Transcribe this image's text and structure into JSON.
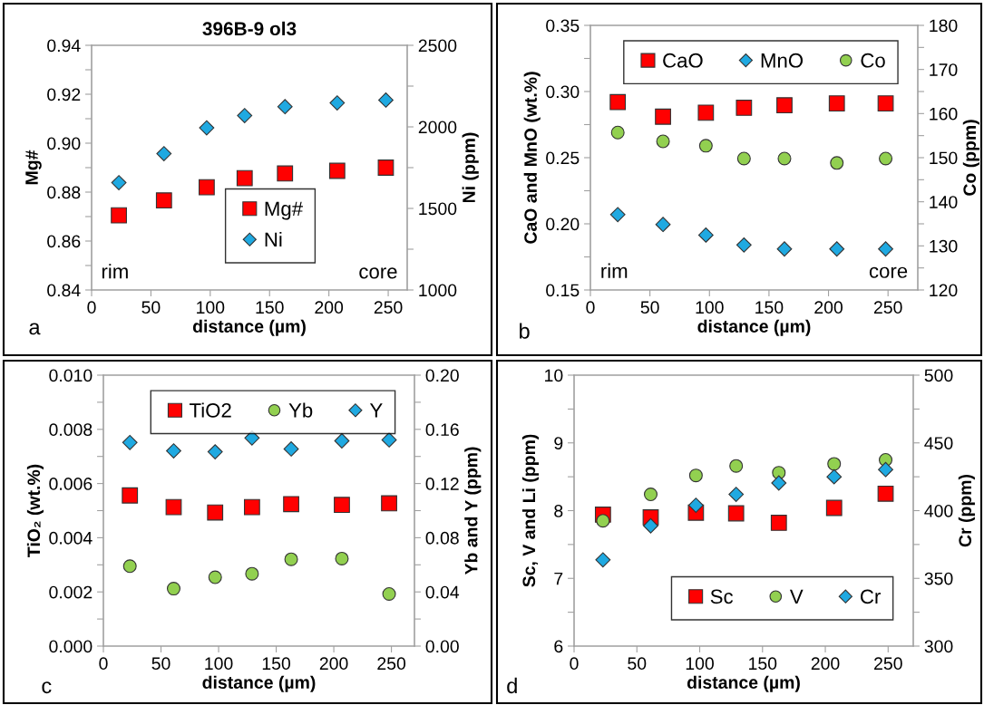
{
  "chart_data": [
    {
      "type": "scatter",
      "title": "396B-9 ol3",
      "xlabel": "distance (µm)",
      "ylabel": "Mg#",
      "y2label": "Ni (ppm)",
      "x": [
        23,
        61,
        97,
        129,
        163,
        207,
        248
      ],
      "series": [
        {
          "name": "Mg#",
          "color": "#ff0000",
          "marker": "square",
          "values": [
            0.8705,
            0.8766,
            0.882,
            0.8857,
            0.8876,
            0.8887,
            0.89
          ]
        },
        {
          "name": "Ni",
          "color": "#1fa9e1",
          "marker": "diamond",
          "axis": "y2",
          "values": [
            1658,
            1836,
            1994,
            2069,
            2124,
            2147,
            2164
          ]
        }
      ],
      "xlim": [
        0,
        266
      ],
      "xticks": [
        0,
        50,
        100,
        150,
        200,
        250
      ],
      "ylim": [
        0.84,
        0.94
      ],
      "yticks": [
        {
          "value": 0.84,
          "label": "0.84"
        },
        {
          "value": 0.85,
          "label": null
        },
        {
          "value": 0.86,
          "label": "0.86"
        },
        {
          "value": 0.87,
          "label": null
        },
        {
          "value": 0.88,
          "label": "0.88"
        },
        {
          "value": 0.89,
          "label": null
        },
        {
          "value": 0.9,
          "label": "0.90"
        },
        {
          "value": 0.91,
          "label": null
        },
        {
          "value": 0.92,
          "label": "0.92"
        },
        {
          "value": 0.93,
          "label": null
        },
        {
          "value": 0.94,
          "label": "0.94"
        }
      ],
      "y2lim": [
        1000,
        2500
      ],
      "y2ticks": [
        1000,
        {
          "value": 1250,
          "label": null
        },
        1500,
        {
          "value": 1750,
          "label": null
        },
        2000,
        {
          "value": 2250,
          "label": null
        },
        2500
      ],
      "legend": "lower right",
      "grid": false,
      "annotations": [
        "rim",
        "core",
        "a"
      ]
    },
    {
      "type": "scatter",
      "xlabel": "distance (µm)",
      "ylabel": "CaO and MnO (wt.%)",
      "y2label": "Co (ppm)",
      "x": [
        23,
        61,
        97,
        129,
        163,
        207,
        248
      ],
      "series": [
        {
          "name": "CaO",
          "color": "#ff0000",
          "marker": "square",
          "values": [
            0.292,
            0.281,
            0.284,
            0.2877,
            0.2896,
            0.291,
            0.291
          ]
        },
        {
          "name": "MnO",
          "color": "#1fa9e1",
          "marker": "diamond",
          "values": [
            0.207,
            0.1995,
            0.1915,
            0.184,
            0.181,
            0.181,
            0.181
          ]
        },
        {
          "name": "Co",
          "color": "#92d050",
          "marker": "circle",
          "axis": "y2",
          "values": [
            155.7,
            153.7,
            152.7,
            149.8,
            149.8,
            148.8,
            149.8
          ]
        }
      ],
      "xlim": [
        0,
        275
      ],
      "xticks": [
        0,
        50,
        100,
        150,
        200,
        250
      ],
      "ylim": [
        0.15,
        0.35
      ],
      "yticks": [
        {
          "value": 0.15,
          "label": "0.15"
        },
        {
          "value": 0.175,
          "label": null
        },
        {
          "value": 0.2,
          "label": "0.20"
        },
        {
          "value": 0.225,
          "label": null
        },
        {
          "value": 0.25,
          "label": "0.25"
        },
        {
          "value": 0.275,
          "label": null
        },
        {
          "value": 0.3,
          "label": "0.30"
        },
        {
          "value": 0.325,
          "label": null
        },
        {
          "value": 0.35,
          "label": "0.35"
        }
      ],
      "y2lim": [
        120,
        180
      ],
      "y2ticks": [
        120,
        {
          "value": 125,
          "label": null
        },
        130,
        {
          "value": 135,
          "label": null
        },
        140,
        {
          "value": 145,
          "label": null
        },
        150,
        {
          "value": 155,
          "label": null
        },
        160,
        {
          "value": 165,
          "label": null
        },
        170,
        {
          "value": 175,
          "label": null
        },
        180
      ],
      "legend": "top right",
      "grid": false,
      "annotations": [
        "rim",
        "core",
        "b"
      ]
    },
    {
      "type": "scatter",
      "xlabel": "distance (µm)",
      "ylabel": "TiO₂ (wt.%)",
      "y2label": "Yb and Y (ppm)",
      "x": [
        23,
        61,
        97,
        129,
        163,
        207,
        248
      ],
      "series": [
        {
          "name": "TiO2",
          "color": "#ff0000",
          "marker": "square",
          "values": [
            0.00556,
            0.00513,
            0.00493,
            0.00513,
            0.00524,
            0.00521,
            0.00527
          ]
        },
        {
          "name": "Yb",
          "color": "#92d050",
          "marker": "circle",
          "axis": "y2",
          "values": [
            0.059,
            0.0424,
            0.0508,
            0.0534,
            0.0641,
            0.0646,
            0.0385
          ]
        },
        {
          "name": "Y",
          "color": "#1fa9e1",
          "marker": "diamond",
          "axis": "y2",
          "values": [
            0.1503,
            0.1441,
            0.1434,
            0.1536,
            0.1455,
            0.1515,
            0.1522
          ]
        }
      ],
      "xlim": [
        0,
        270
      ],
      "xticks": [
        0,
        50,
        100,
        150,
        200,
        250
      ],
      "ylim": [
        0,
        0.01
      ],
      "yticks": [
        {
          "value": 0,
          "label": "0.000"
        },
        {
          "value": 0.001,
          "label": null
        },
        {
          "value": 0.002,
          "label": "0.002"
        },
        {
          "value": 0.003,
          "label": null
        },
        {
          "value": 0.004,
          "label": "0.004"
        },
        {
          "value": 0.005,
          "label": null
        },
        {
          "value": 0.006,
          "label": "0.006"
        },
        {
          "value": 0.007,
          "label": null
        },
        {
          "value": 0.008,
          "label": "0.008"
        },
        {
          "value": 0.009,
          "label": null
        },
        {
          "value": 0.01,
          "label": "0.010"
        }
      ],
      "y2lim": [
        0,
        0.2
      ],
      "y2ticks": [
        {
          "value": 0,
          "label": "0.00"
        },
        {
          "value": 0.02,
          "label": null
        },
        {
          "value": 0.04,
          "label": "0.04"
        },
        {
          "value": 0.06,
          "label": null
        },
        {
          "value": 0.08,
          "label": "0.08"
        },
        {
          "value": 0.1,
          "label": null
        },
        {
          "value": 0.12,
          "label": "0.12"
        },
        {
          "value": 0.14,
          "label": null
        },
        {
          "value": 0.16,
          "label": "0.16"
        },
        {
          "value": 0.18,
          "label": null
        },
        {
          "value": 0.2,
          "label": "0.20"
        }
      ],
      "legend": "top right",
      "grid": false,
      "annotations": [
        "c"
      ]
    },
    {
      "type": "scatter",
      "xlabel": "distance (µm)",
      "ylabel": "Sc, V and Li (ppm)",
      "y2label": "Cr (ppm)",
      "x": [
        23,
        61,
        97,
        129,
        163,
        207,
        248
      ],
      "series": [
        {
          "name": "Sc",
          "color": "#ff0000",
          "marker": "square",
          "values": [
            7.94,
            7.9,
            7.97,
            7.96,
            7.82,
            8.04,
            8.25
          ]
        },
        {
          "name": "V",
          "color": "#92d050",
          "marker": "circle",
          "values": [
            7.85,
            8.24,
            8.52,
            8.66,
            8.56,
            8.69,
            8.75
          ]
        },
        {
          "name": "Cr",
          "color": "#1fa9e1",
          "marker": "diamond",
          "axis": "y2",
          "values": [
            363.7,
            388.8,
            404,
            412,
            420.4,
            425,
            430.3
          ]
        }
      ],
      "xlim": [
        0,
        270
      ],
      "xticks": [
        0,
        50,
        100,
        150,
        200,
        250
      ],
      "ylim": [
        6,
        10
      ],
      "yticks": [
        6,
        {
          "value": 6.5,
          "label": null
        },
        7,
        {
          "value": 7.5,
          "label": null
        },
        8,
        {
          "value": 8.5,
          "label": null
        },
        9,
        {
          "value": 9.5,
          "label": null
        },
        10
      ],
      "y2lim": [
        300,
        500
      ],
      "y2ticks": [
        300,
        {
          "value": 325,
          "label": null
        },
        350,
        {
          "value": 375,
          "label": null
        },
        400,
        {
          "value": 425,
          "label": null
        },
        450,
        {
          "value": 475,
          "label": null
        },
        500
      ],
      "legend": "bottom right",
      "grid": false,
      "annotations": [
        "d"
      ]
    }
  ]
}
